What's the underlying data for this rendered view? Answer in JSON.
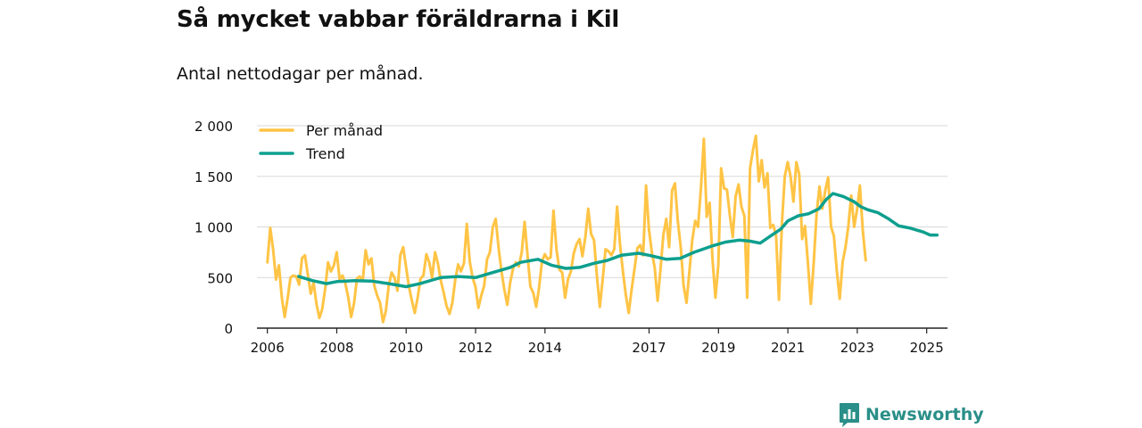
{
  "title": "Så mycket vabbar föräldrarna i Kil",
  "subtitle": "Antal nettodagar per månad.",
  "brand": {
    "name": "Newsworthy",
    "icon": "newsworthy-logo-icon"
  },
  "colors": {
    "monthly": "#ffc445",
    "trend": "#0e9f8e",
    "grid": "#d9d9d9",
    "axis": "#222222",
    "text": "#111111"
  },
  "chart_data": {
    "type": "line",
    "title": "Så mycket vabbar föräldrarna i Kil",
    "subtitle": "Antal nettodagar per månad.",
    "xlabel": "",
    "ylabel": "",
    "xlim": [
      2005.7,
      2025.6
    ],
    "ylim": [
      0,
      2000
    ],
    "yticks": [
      0,
      500,
      1000,
      1500,
      2000
    ],
    "ytick_labels": [
      "0",
      "500",
      "1 000",
      "1 500",
      "2 000"
    ],
    "xticks": [
      2006,
      2008,
      2010,
      2012,
      2014,
      2017,
      2019,
      2021,
      2023,
      2025
    ],
    "xtick_labels": [
      "2006",
      "2008",
      "2010",
      "2012",
      "2014",
      "2017",
      "2019",
      "2021",
      "2023",
      "2025"
    ],
    "legend": {
      "position": "top-left",
      "entries": [
        "Per månad",
        "Trend"
      ]
    },
    "series": [
      {
        "name": "Per månad",
        "start": 2006.0,
        "step": 0.0833,
        "values": [
          650,
          990,
          780,
          480,
          620,
          300,
          110,
          290,
          500,
          520,
          510,
          430,
          690,
          720,
          530,
          340,
          450,
          240,
          100,
          190,
          390,
          650,
          560,
          620,
          750,
          480,
          520,
          440,
          300,
          110,
          250,
          490,
          510,
          470,
          770,
          630,
          690,
          420,
          320,
          250,
          60,
          170,
          420,
          550,
          500,
          370,
          720,
          800,
          600,
          410,
          270,
          150,
          300,
          490,
          520,
          730,
          650,
          500,
          750,
          640,
          470,
          350,
          220,
          140,
          250,
          480,
          630,
          560,
          640,
          1030,
          660,
          500,
          410,
          200,
          320,
          420,
          680,
          750,
          1000,
          1080,
          790,
          560,
          380,
          230,
          450,
          590,
          650,
          610,
          750,
          1050,
          720,
          410,
          350,
          210,
          400,
          660,
          730,
          680,
          700,
          1160,
          780,
          580,
          550,
          300,
          480,
          560,
          740,
          830,
          880,
          710,
          900,
          1180,
          930,
          870,
          520,
          210,
          480,
          780,
          760,
          720,
          780,
          1200,
          830,
          560,
          330,
          150,
          380,
          580,
          790,
          820,
          720,
          1410,
          980,
          750,
          600,
          270,
          580,
          920,
          1080,
          800,
          1360,
          1430,
          1060,
          800,
          420,
          250,
          560,
          870,
          1060,
          1000,
          1390,
          1870,
          1100,
          1240,
          680,
          300,
          620,
          1580,
          1380,
          1370,
          1110,
          900,
          1300,
          1420,
          1200,
          1110,
          300,
          1580,
          1760,
          1900,
          1450,
          1660,
          1390,
          1530,
          990,
          1020,
          910,
          280,
          1030,
          1500,
          1640,
          1500,
          1250,
          1640,
          1520,
          880,
          1010,
          650,
          240,
          640,
          1130,
          1400,
          1180,
          1360,
          1490,
          1000,
          910,
          570,
          290,
          650,
          800,
          1010,
          1310,
          1000,
          1170,
          1410,
          960,
          670
        ]
      },
      {
        "name": "Trend",
        "points": [
          [
            2006.9,
            510
          ],
          [
            2007.3,
            470
          ],
          [
            2007.7,
            440
          ],
          [
            2008.0,
            460
          ],
          [
            2008.5,
            470
          ],
          [
            2009.0,
            465
          ],
          [
            2009.5,
            440
          ],
          [
            2010.0,
            410
          ],
          [
            2010.4,
            440
          ],
          [
            2010.8,
            480
          ],
          [
            2011.0,
            500
          ],
          [
            2011.5,
            510
          ],
          [
            2012.0,
            500
          ],
          [
            2012.5,
            550
          ],
          [
            2013.0,
            600
          ],
          [
            2013.3,
            650
          ],
          [
            2013.8,
            680
          ],
          [
            2014.2,
            620
          ],
          [
            2014.6,
            590
          ],
          [
            2015.0,
            600
          ],
          [
            2015.4,
            640
          ],
          [
            2015.8,
            670
          ],
          [
            2016.2,
            720
          ],
          [
            2016.7,
            740
          ],
          [
            2017.0,
            720
          ],
          [
            2017.5,
            680
          ],
          [
            2017.9,
            690
          ],
          [
            2018.3,
            750
          ],
          [
            2018.8,
            810
          ],
          [
            2019.2,
            850
          ],
          [
            2019.6,
            870
          ],
          [
            2019.9,
            860
          ],
          [
            2020.2,
            840
          ],
          [
            2020.5,
            910
          ],
          [
            2020.8,
            980
          ],
          [
            2021.0,
            1060
          ],
          [
            2021.3,
            1110
          ],
          [
            2021.6,
            1130
          ],
          [
            2021.9,
            1180
          ],
          [
            2022.1,
            1270
          ],
          [
            2022.3,
            1330
          ],
          [
            2022.6,
            1300
          ],
          [
            2022.9,
            1250
          ],
          [
            2023.1,
            1200
          ],
          [
            2023.3,
            1170
          ],
          [
            2023.6,
            1140
          ],
          [
            2023.9,
            1080
          ],
          [
            2024.2,
            1010
          ],
          [
            2024.5,
            990
          ],
          [
            2024.9,
            950
          ],
          [
            2025.1,
            920
          ],
          [
            2025.3,
            920
          ]
        ]
      }
    ]
  }
}
